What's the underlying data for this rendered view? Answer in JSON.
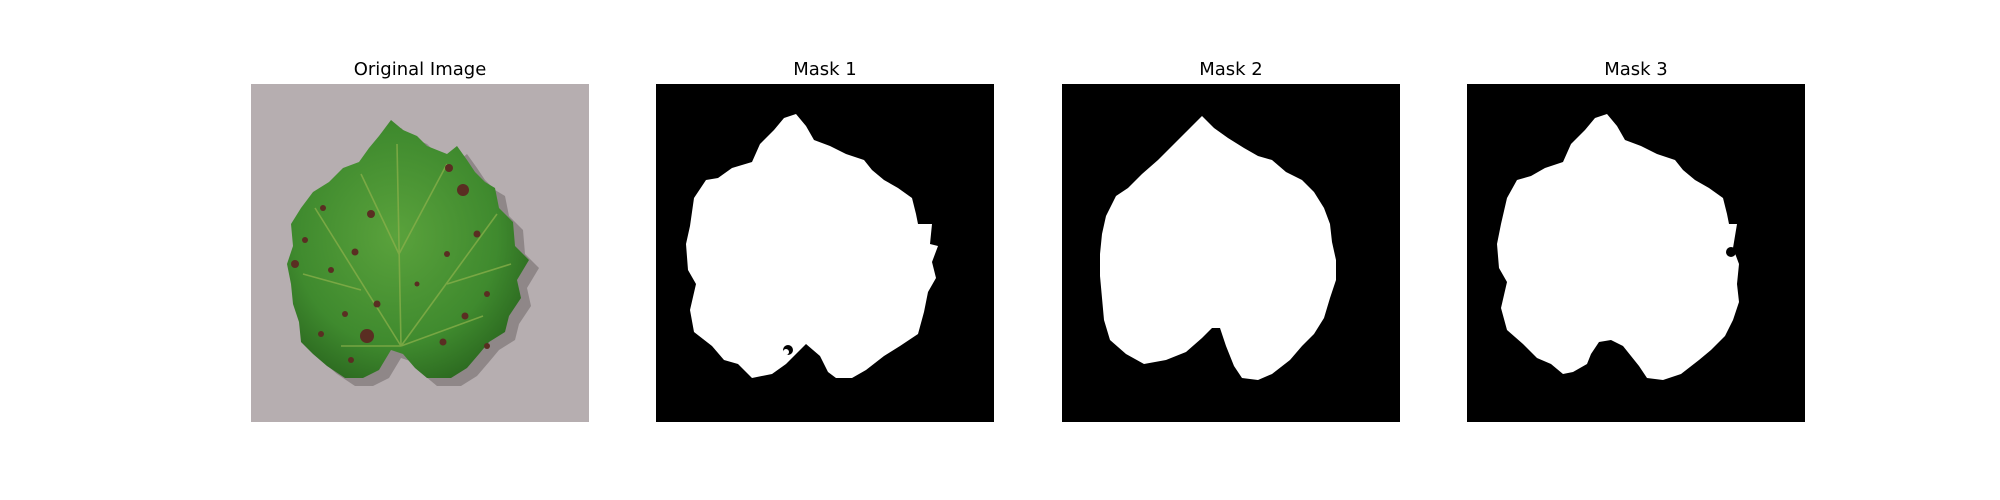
{
  "panels": [
    {
      "title": "Original Image",
      "content": "leaf-photo"
    },
    {
      "title": "Mask 1",
      "content": "binary-mask"
    },
    {
      "title": "Mask 2",
      "content": "binary-mask"
    },
    {
      "title": "Mask 3",
      "content": "binary-mask"
    }
  ],
  "colors": {
    "background": "#b6aeb0",
    "leaf": "#3f8a2e",
    "leaf_dark": "#2c6a20",
    "spot": "#5a2e22",
    "mask_bg": "#000000",
    "mask_fg": "#ffffff"
  }
}
